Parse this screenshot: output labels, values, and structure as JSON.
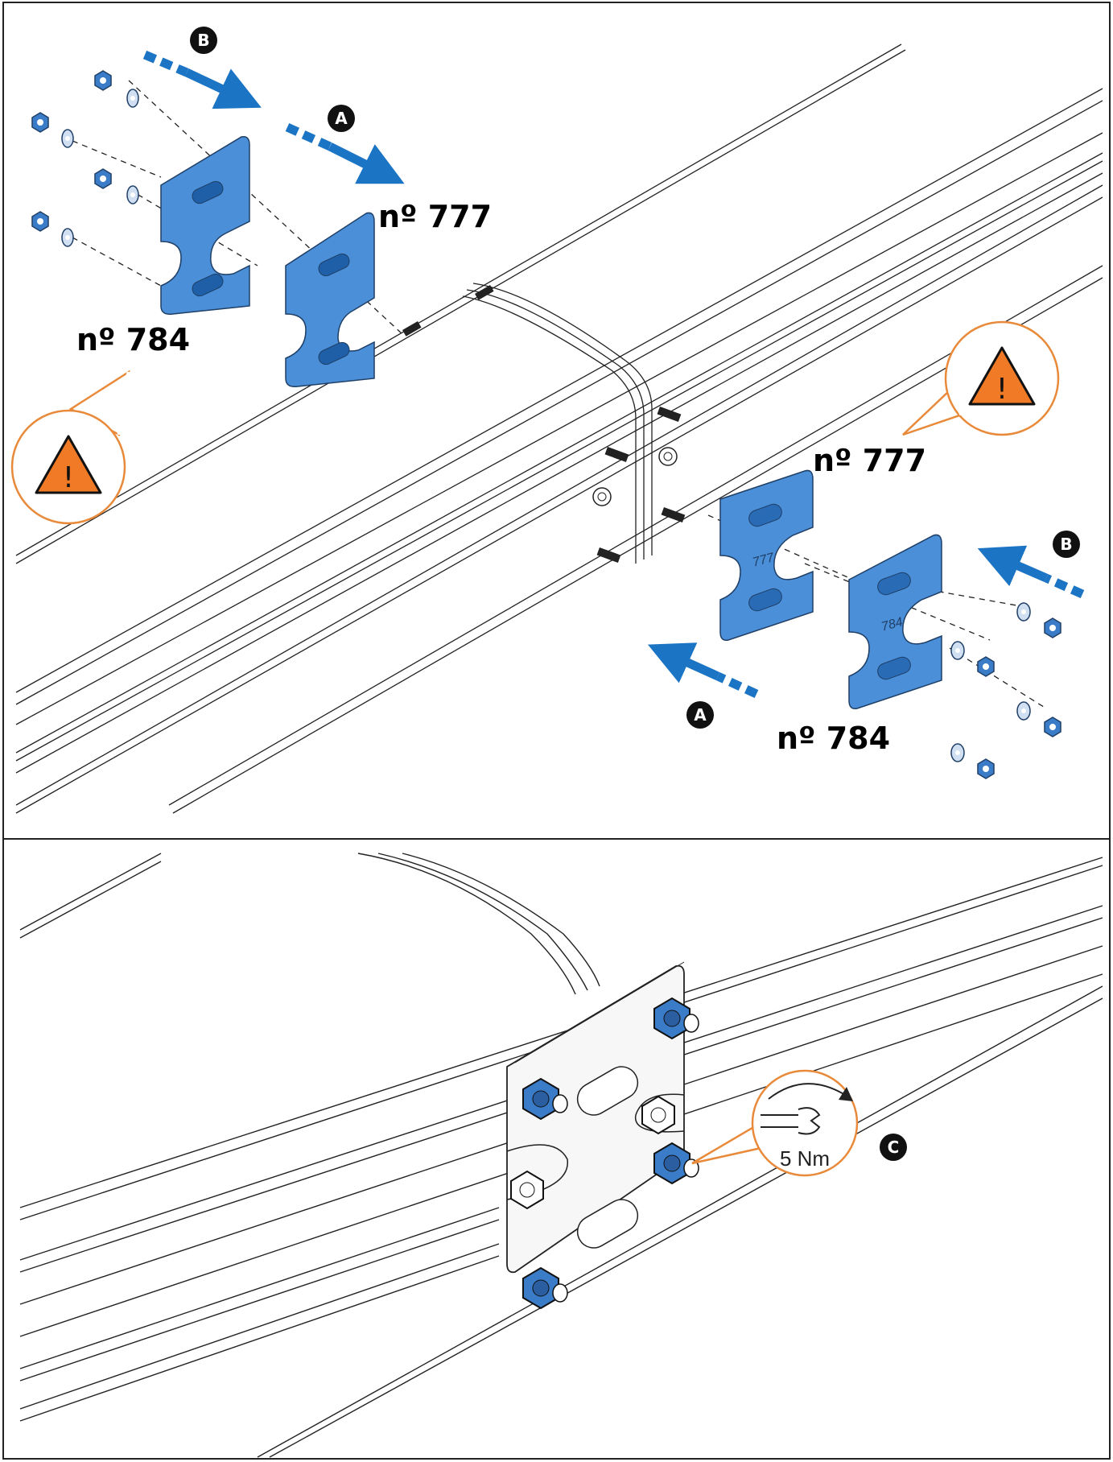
{
  "panels": {
    "top": {
      "steps": {
        "a": "A",
        "b": "B"
      },
      "parts": {
        "inner_plate": "nº 777",
        "outer_plate": "nº 784",
        "plate_mark_inner": "777",
        "plate_mark_outer": "784"
      },
      "warning_icon": "warning-triangle-icon"
    },
    "bottom": {
      "step_c": "C",
      "torque_value": "5 Nm",
      "wrench_icon": "wrench-icon",
      "rotate_icon": "clockwise-arrow-icon"
    }
  },
  "colors": {
    "plate_blue": "#4a8fd8",
    "arrow_blue": "#1c74c4",
    "warning_orange": "#f07a26",
    "callout_orange": "#e88a3a",
    "nut_blue": "#3b7cc9"
  }
}
